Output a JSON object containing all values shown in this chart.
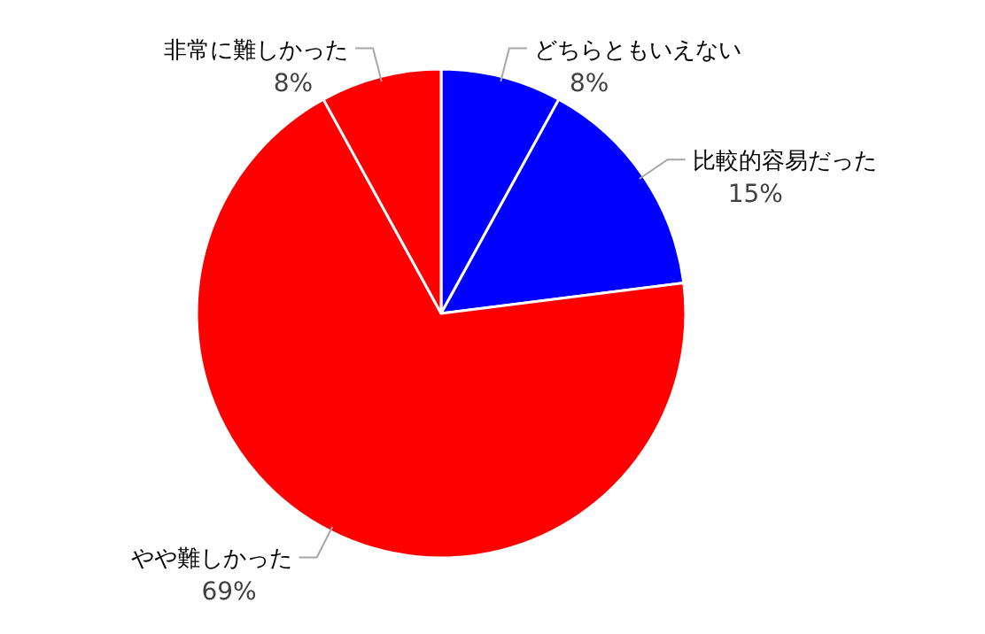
{
  "chart_data": {
    "type": "pie",
    "categories": [
      "どちらともいえない",
      "比較的容易だった",
      "やや難しかった",
      "非常に難しかった"
    ],
    "values": [
      8,
      15,
      69,
      8
    ],
    "colors": [
      "#0000ff",
      "#0000ff",
      "#ff0000",
      "#ff0000"
    ],
    "value_labels": [
      "8%",
      "15%",
      "69%",
      "8%"
    ]
  }
}
